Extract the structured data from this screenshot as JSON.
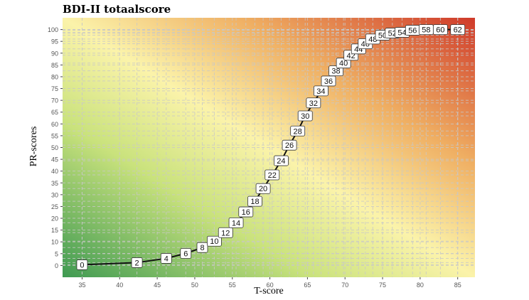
{
  "chart_data": {
    "type": "line",
    "title": "BDI-II totaalscore",
    "xlabel": "T-score",
    "ylabel": "PR-scores",
    "xlim": [
      32.4,
      87.3
    ],
    "ylim": [
      -5,
      105
    ],
    "xticks": [
      35,
      40,
      45,
      50,
      55,
      60,
      65,
      70,
      75,
      80,
      85
    ],
    "yticks": [
      0,
      5,
      10,
      15,
      20,
      25,
      30,
      35,
      40,
      45,
      50,
      55,
      60,
      65,
      70,
      75,
      80,
      85,
      90,
      95,
      100
    ],
    "grid": true,
    "background": "gradient green (low) to yellow to red (high)",
    "colors": {
      "low": "#3f9a52",
      "mid_low": "#c9e27c",
      "mid": "#fbf3aa",
      "mid_high": "#efae62",
      "high": "#cf3a2a"
    },
    "points": [
      {
        "label": "0",
        "x": 35,
        "y": 0.3
      },
      {
        "label": "2",
        "x": 42.3,
        "y": 1.2
      },
      {
        "label": "4",
        "x": 46.2,
        "y": 3
      },
      {
        "label": "6",
        "x": 48.8,
        "y": 5.1
      },
      {
        "label": "8",
        "x": 51,
        "y": 7.6
      },
      {
        "label": "10",
        "x": 52.6,
        "y": 10.3
      },
      {
        "label": "12",
        "x": 54.1,
        "y": 13.9
      },
      {
        "label": "14",
        "x": 55.5,
        "y": 18.1
      },
      {
        "label": "16",
        "x": 56.8,
        "y": 22.7
      },
      {
        "label": "18",
        "x": 58,
        "y": 27.2
      },
      {
        "label": "20",
        "x": 59.1,
        "y": 32.6
      },
      {
        "label": "22",
        "x": 60.3,
        "y": 38.4
      },
      {
        "label": "24",
        "x": 61.5,
        "y": 44.4
      },
      {
        "label": "26",
        "x": 62.6,
        "y": 51
      },
      {
        "label": "28",
        "x": 63.7,
        "y": 57
      },
      {
        "label": "30",
        "x": 64.7,
        "y": 63.4
      },
      {
        "label": "32",
        "x": 65.8,
        "y": 68.9
      },
      {
        "label": "34",
        "x": 66.8,
        "y": 74
      },
      {
        "label": "36",
        "x": 67.8,
        "y": 78.2
      },
      {
        "label": "38",
        "x": 68.8,
        "y": 82.5
      },
      {
        "label": "40",
        "x": 69.8,
        "y": 85.8
      },
      {
        "label": "42",
        "x": 70.8,
        "y": 89.1
      },
      {
        "label": "44",
        "x": 71.8,
        "y": 91.8
      },
      {
        "label": "46",
        "x": 72.7,
        "y": 94
      },
      {
        "label": "48",
        "x": 73.7,
        "y": 96
      },
      {
        "label": "50",
        "x": 75,
        "y": 97.6
      },
      {
        "label": "52",
        "x": 76.3,
        "y": 98.5
      },
      {
        "label": "54",
        "x": 77.6,
        "y": 98.8
      },
      {
        "label": "56",
        "x": 79,
        "y": 99.7
      },
      {
        "label": "58",
        "x": 80.8,
        "y": 100
      },
      {
        "label": "60",
        "x": 82.7,
        "y": 100
      },
      {
        "label": "62",
        "x": 85,
        "y": 100
      }
    ]
  }
}
